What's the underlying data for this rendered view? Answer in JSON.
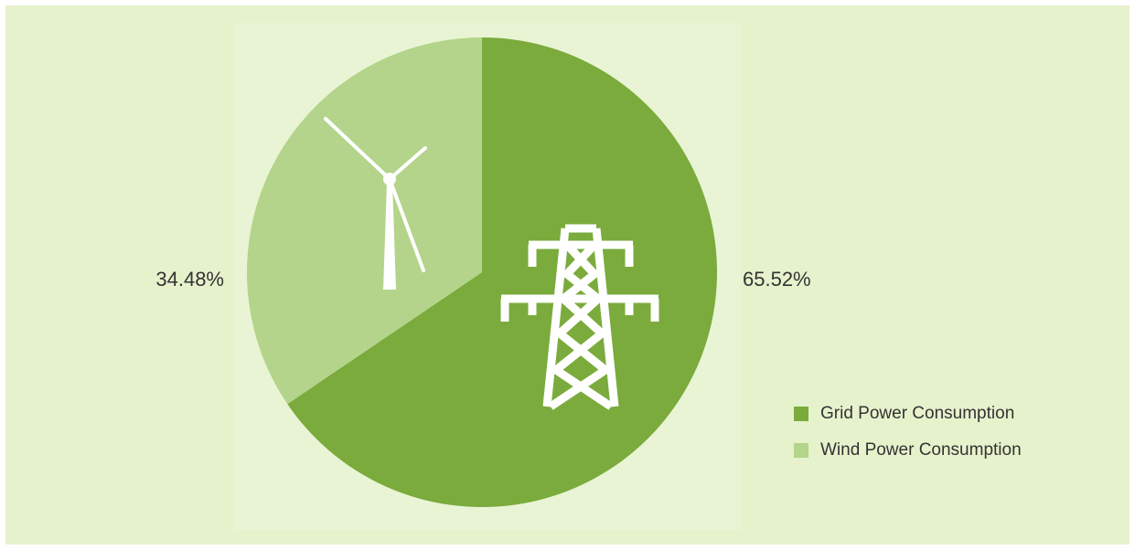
{
  "chart_data": {
    "type": "pie",
    "categories": [
      "Grid Power Consumption",
      "Wind Power Consumption"
    ],
    "values": [
      65.52,
      34.48
    ],
    "value_labels": [
      "65.52%",
      "34.48%"
    ],
    "colors": [
      "#7aab3c",
      "#b3d48a"
    ]
  }
}
